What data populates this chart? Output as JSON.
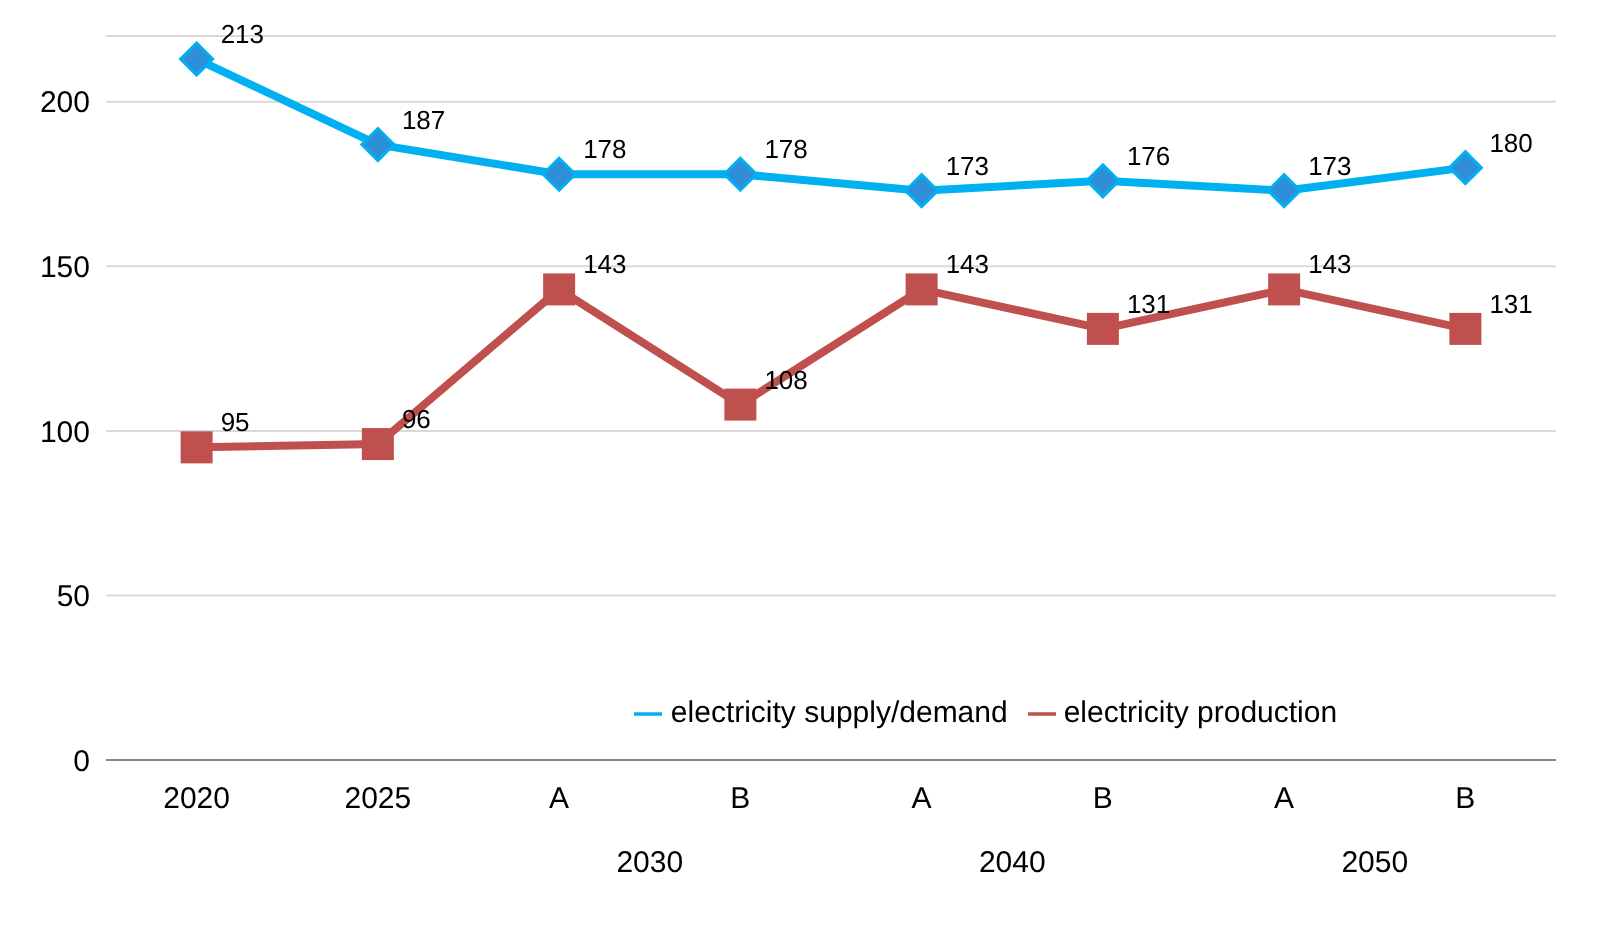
{
  "chart_data": {
    "type": "line",
    "categories": [
      "2020",
      "2025",
      "A",
      "B",
      "A",
      "B",
      "A",
      "B"
    ],
    "annotations": [
      "2030",
      "2040",
      "2050"
    ],
    "series": [
      {
        "name": "electricity supply/demand",
        "color": "#00b0f0",
        "marker": "diamond",
        "values": [
          213,
          187,
          178,
          178,
          173,
          176,
          173,
          180
        ]
      },
      {
        "name": "electricity production",
        "color": "#c0504d",
        "marker": "square",
        "values": [
          95,
          96,
          143,
          108,
          143,
          131,
          143,
          131
        ]
      }
    ],
    "ylim": [
      0,
      220
    ],
    "yticks": [
      0,
      50,
      100,
      150,
      200
    ],
    "grid": "y",
    "legend": "bottom",
    "data_labels": true
  }
}
